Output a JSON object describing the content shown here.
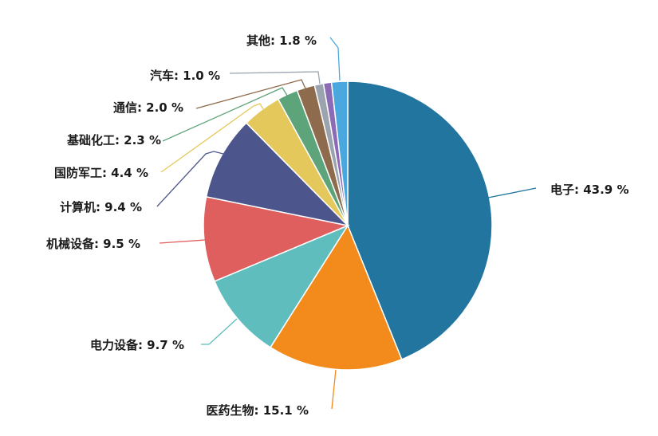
{
  "chart_data": {
    "type": "pie",
    "title": "",
    "unit": "%",
    "slices": [
      {
        "name": "电子",
        "value": 43.9,
        "color": "#21759f",
        "label": "电子: 43.9 %"
      },
      {
        "name": "医药生物",
        "value": 15.1,
        "color": "#f28a1c",
        "label": "医药生物: 15.1 %"
      },
      {
        "name": "电力设备",
        "value": 9.7,
        "color": "#5fbdbe",
        "label": "电力设备: 9.7 %"
      },
      {
        "name": "机械设备",
        "value": 9.5,
        "color": "#df5e5e",
        "label": "机械设备: 9.5 %"
      },
      {
        "name": "计算机",
        "value": 9.4,
        "color": "#4c568c",
        "label": "计算机: 9.4 %"
      },
      {
        "name": "国防军工",
        "value": 4.4,
        "color": "#e5c85b",
        "label": "国防军工: 4.4 %"
      },
      {
        "name": "基础化工",
        "value": 2.3,
        "color": "#5ea47a",
        "label": "基础化工: 2.3 %"
      },
      {
        "name": "通信",
        "value": 2.0,
        "color": "#8d6b4c",
        "label": "通信: 2.0 %"
      },
      {
        "name": "汽车",
        "value": 1.0,
        "color": "#9ba4ae",
        "label": "汽车: 1.0 %"
      },
      {
        "name": "其他",
        "value": 1.8,
        "color": "#4aa8de",
        "label": "其他: 1.8 %"
      }
    ],
    "minor_slice_color": "#8b6bb6"
  }
}
